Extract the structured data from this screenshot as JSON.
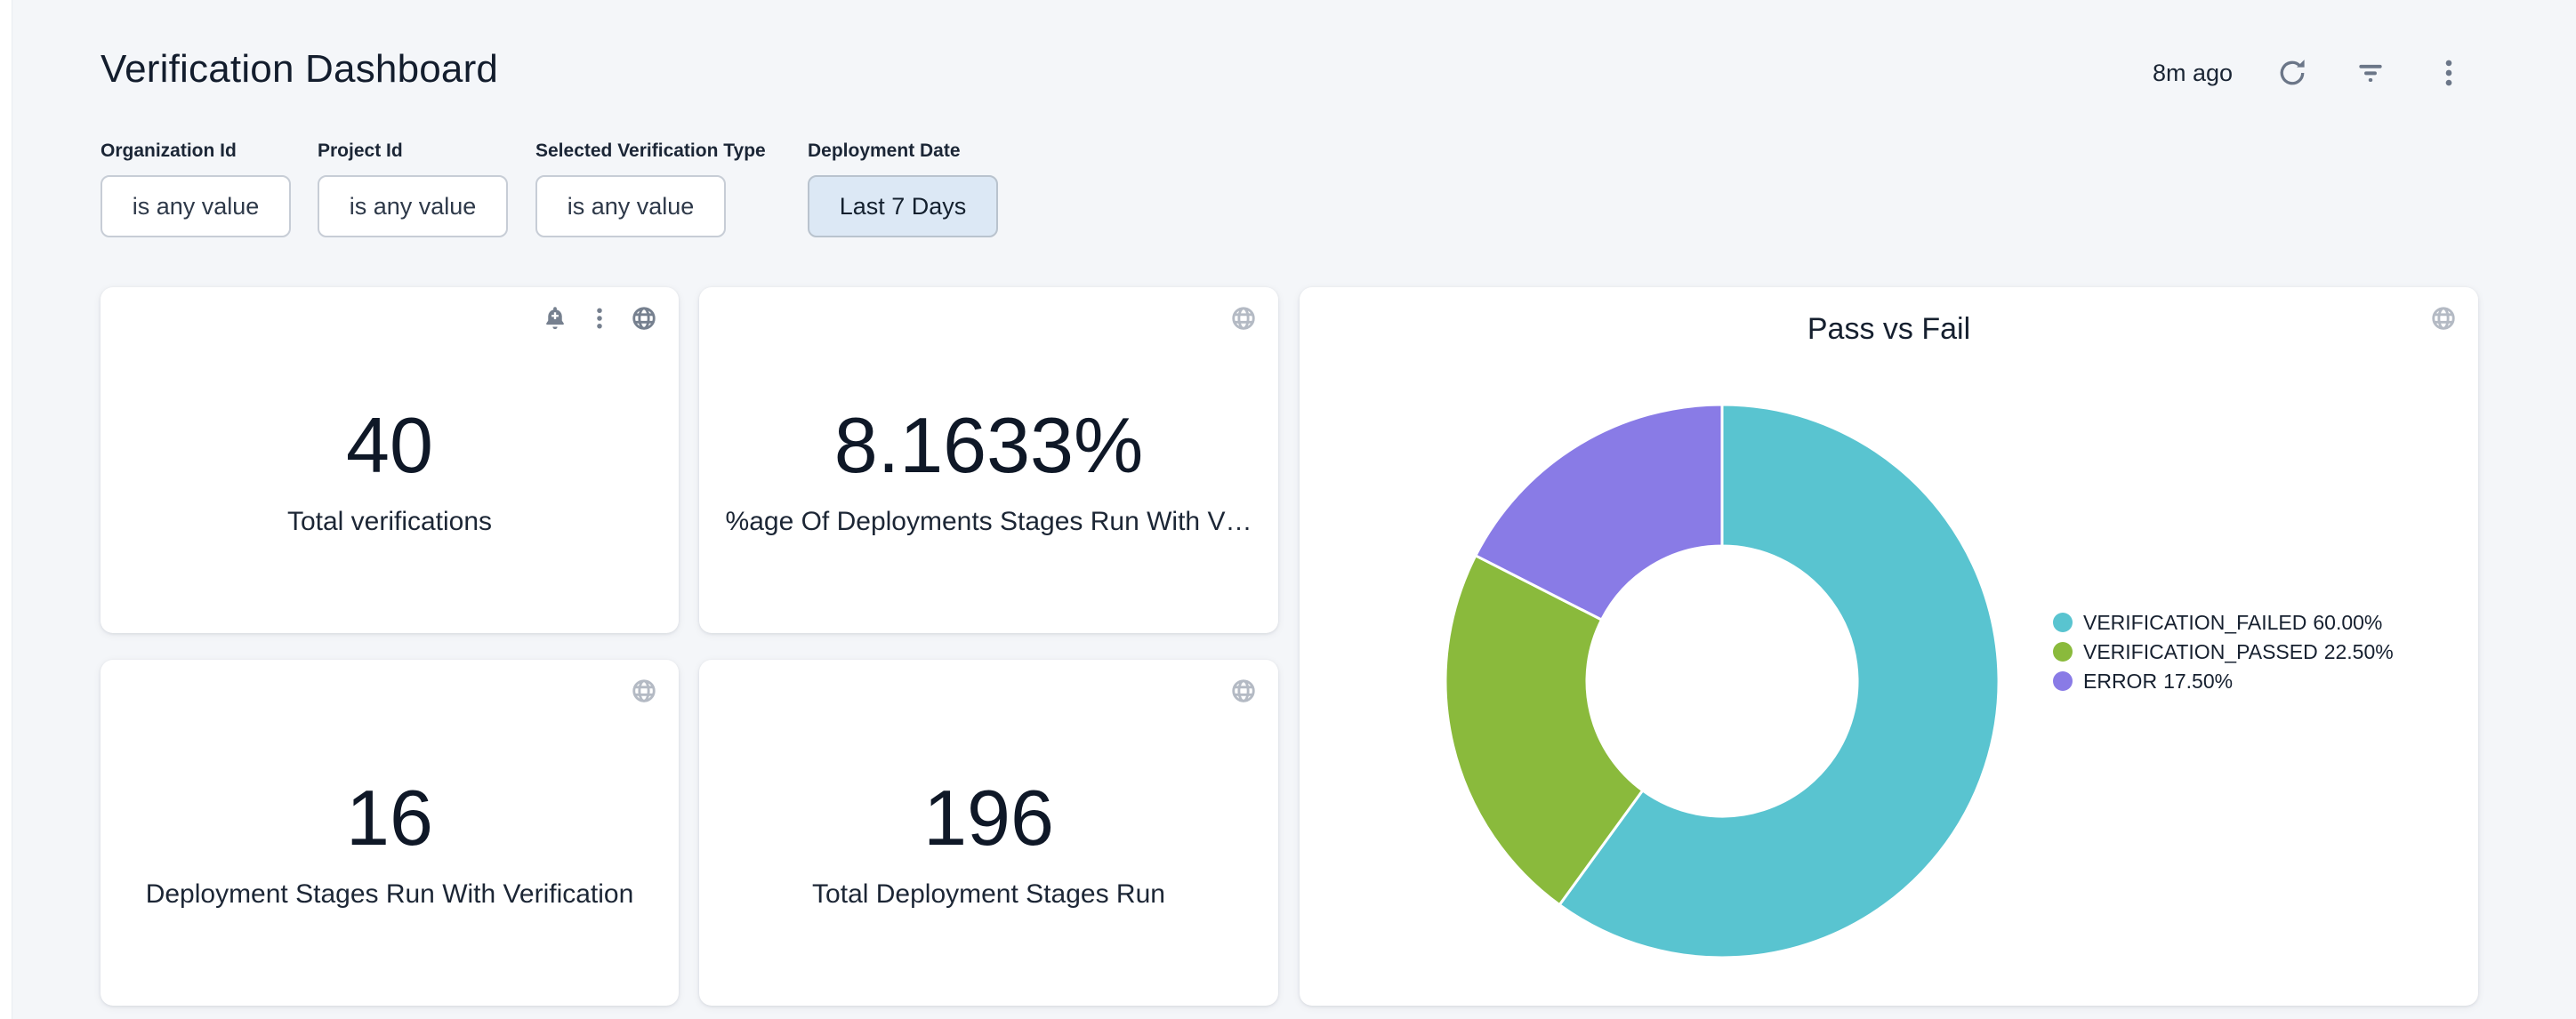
{
  "header": {
    "title": "Verification Dashboard",
    "last_refresh": "8m ago"
  },
  "filters": {
    "items": [
      {
        "label": "Organization Id",
        "value": "is any value",
        "active": false
      },
      {
        "label": "Project Id",
        "value": "is any value",
        "active": false
      },
      {
        "label": "Selected Verification Type",
        "value": "is any value",
        "active": false
      },
      {
        "label": "Deployment Date",
        "value": "Last 7 Days",
        "active": true
      }
    ]
  },
  "tiles": [
    {
      "value": "40",
      "label": "Total verifications"
    },
    {
      "value": "8.1633%",
      "label": "%age Of Deployments Stages Run With V…"
    },
    {
      "value": "16",
      "label": "Deployment Stages Run With Verification"
    },
    {
      "value": "196",
      "label": "Total Deployment Stages Run"
    }
  ],
  "chart_data": {
    "type": "pie",
    "subtype": "donut",
    "title": "Pass vs Fail",
    "categories": [
      "VERIFICATION_FAILED",
      "VERIFICATION_PASSED",
      "ERROR"
    ],
    "values": [
      60.0,
      22.5,
      17.5
    ],
    "value_labels": [
      "60.00%",
      "22.50%",
      "17.50%"
    ],
    "colors": [
      "#59c4d0",
      "#8aba3c",
      "#897be6"
    ],
    "legend_position": "right",
    "start_angle_deg": 0,
    "direction": "clockwise",
    "inner_radius_ratio": 0.49
  },
  "legend": [
    {
      "name": "VERIFICATION_FAILED",
      "pct": "60.00%"
    },
    {
      "name": "VERIFICATION_PASSED",
      "pct": "22.50%"
    },
    {
      "name": "ERROR",
      "pct": "17.50%"
    }
  ],
  "icons": {
    "header": [
      "refresh-icon",
      "filter-icon",
      "kebab-icon"
    ],
    "tiles": [
      "bell-plus-icon",
      "kebab-icon",
      "globe-icon"
    ]
  },
  "theme": {
    "page_bg": "#f4f6f9",
    "card_bg": "#ffffff",
    "text_dark": "#131d2d",
    "active_filter_bg": "#dce8f5",
    "icon_gray_dark": "#76808f",
    "icon_gray_light": "#b4bac4"
  }
}
